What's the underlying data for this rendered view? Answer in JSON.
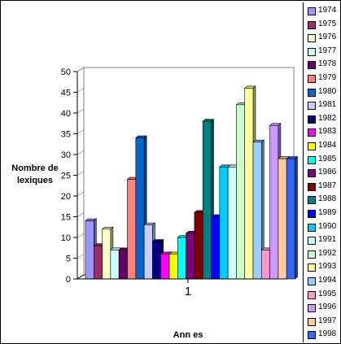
{
  "chart_data": {
    "type": "bar",
    "categories": [
      "1"
    ],
    "ylabel": "Nombre de lexiques",
    "xlabel": "Ann es",
    "ylim": [
      0,
      50
    ],
    "yticks": [
      "0",
      "5",
      "10",
      "15",
      "20",
      "25",
      "30",
      "35",
      "40",
      "45",
      "50"
    ],
    "legend_position": "right",
    "series": [
      {
        "name": "1974",
        "values": [
          14
        ],
        "color": "#9999ff"
      },
      {
        "name": "1975",
        "values": [
          8
        ],
        "color": "#993366"
      },
      {
        "name": "1976",
        "values": [
          12
        ],
        "color": "#ffffcc"
      },
      {
        "name": "1977",
        "values": [
          7
        ],
        "color": "#ccffff"
      },
      {
        "name": "1978",
        "values": [
          7
        ],
        "color": "#660066"
      },
      {
        "name": "1979",
        "values": [
          24
        ],
        "color": "#ff8080"
      },
      {
        "name": "1980",
        "values": [
          34
        ],
        "color": "#0066cc"
      },
      {
        "name": "1981",
        "values": [
          13
        ],
        "color": "#ccccff"
      },
      {
        "name": "1982",
        "values": [
          9
        ],
        "color": "#000080"
      },
      {
        "name": "1983",
        "values": [
          6
        ],
        "color": "#ff00ff"
      },
      {
        "name": "1984",
        "values": [
          6
        ],
        "color": "#ffff00"
      },
      {
        "name": "1985",
        "values": [
          10
        ],
        "color": "#00ffff"
      },
      {
        "name": "1986",
        "values": [
          11
        ],
        "color": "#800080"
      },
      {
        "name": "1987",
        "values": [
          16
        ],
        "color": "#800000"
      },
      {
        "name": "1988",
        "values": [
          38
        ],
        "color": "#008080"
      },
      {
        "name": "1989",
        "values": [
          15
        ],
        "color": "#0000ff"
      },
      {
        "name": "1990",
        "values": [
          27
        ],
        "color": "#00ccff"
      },
      {
        "name": "1991",
        "values": [
          27
        ],
        "color": "#ccffff"
      },
      {
        "name": "1992",
        "values": [
          42
        ],
        "color": "#ccffcc"
      },
      {
        "name": "1993",
        "values": [
          46
        ],
        "color": "#ffff99"
      },
      {
        "name": "1994",
        "values": [
          33
        ],
        "color": "#99ccff"
      },
      {
        "name": "1995",
        "values": [
          7
        ],
        "color": "#ff99cc"
      },
      {
        "name": "1996",
        "values": [
          37
        ],
        "color": "#cc99ff"
      },
      {
        "name": "1997",
        "values": [
          29
        ],
        "color": "#ffcc99"
      },
      {
        "name": "1998",
        "values": [
          29
        ],
        "color": "#3366ff"
      }
    ]
  }
}
